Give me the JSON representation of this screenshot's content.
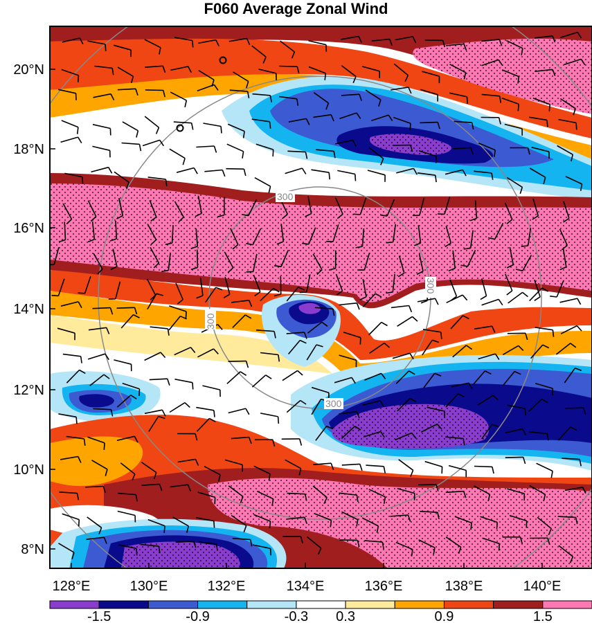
{
  "title": "F060 Average Zonal Wind",
  "axes": {
    "x_ticks": [
      "128°E",
      "130°E",
      "132°E",
      "134°E",
      "136°E",
      "138°E",
      "140°E"
    ],
    "y_ticks": [
      "8°N",
      "10°N",
      "12°N",
      "14°N",
      "16°N",
      "18°N",
      "20°N"
    ]
  },
  "colorbar": {
    "colors": [
      "#8a3ccf",
      "#0a0a8c",
      "#3c5ad2",
      "#14b4f0",
      "#b4e6f8",
      "#ffffff",
      "#ffeb9b",
      "#ffa500",
      "#f04614",
      "#a01e1e",
      "#ff78b4"
    ],
    "labels": [
      "-1.5",
      "-0.9",
      "-0.3",
      "0.3",
      "0.9",
      "1.5"
    ]
  },
  "rings": {
    "labels": [
      "300",
      "300",
      "300",
      "300"
    ]
  },
  "map_data": {
    "type": "contour-field",
    "extent": {
      "lon": [
        127.75,
        141
      ],
      "lat": [
        7.5,
        21
      ]
    },
    "center": {
      "lon": 134.7,
      "lat": 13.6
    }
  }
}
